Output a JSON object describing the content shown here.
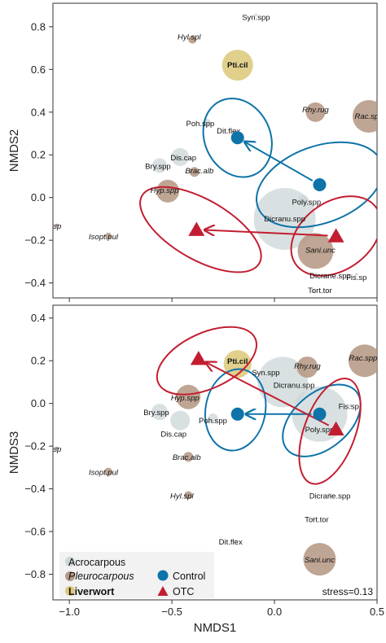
{
  "chart_data": [
    {
      "type": "scatter",
      "panel": "top",
      "xlabel": "",
      "ylabel": "NMDS2",
      "xlim": [
        -1.08,
        0.5
      ],
      "ylim": [
        -0.47,
        0.91
      ],
      "x_ticks": [
        -1.0,
        -0.5,
        0.0,
        0.5
      ],
      "x_tick_labels": [
        "",
        "",
        "",
        ""
      ],
      "y_ticks": [
        -0.4,
        -0.2,
        0.0,
        0.2,
        0.4,
        0.6,
        0.8
      ],
      "y_tick_labels": [
        "−0.4",
        "−0.2",
        "0.0",
        "0.2",
        "0.4",
        "0.6",
        "0.8"
      ],
      "species": [
        {
          "label": "Syn.spp",
          "x": -0.09,
          "y": 0.855,
          "group": "Acrocarpous",
          "size": 2
        },
        {
          "label": "Hyl.spl",
          "x": -0.4,
          "y": 0.74,
          "group": "Pleurocarpous",
          "size": 5
        },
        {
          "label": "Pti.cil",
          "x": -0.18,
          "y": 0.62,
          "group": "Liverwort",
          "size": 19
        },
        {
          "label": "Rhy.rug",
          "x": 0.2,
          "y": 0.4,
          "group": "Pleurocarpous",
          "size": 12
        },
        {
          "label": "Rac.spp",
          "x": 0.46,
          "y": 0.38,
          "group": "Pleurocarpous",
          "size": 20
        },
        {
          "label": "Poh.spp",
          "x": -0.33,
          "y": 0.35,
          "group": "Acrocarpous",
          "size": 5
        },
        {
          "label": "Dit.flex",
          "x": -0.2,
          "y": 0.3,
          "group": "Acrocarpous",
          "size": 3
        },
        {
          "label": "Dis.cap",
          "x": -0.46,
          "y": 0.19,
          "group": "Acrocarpous",
          "size": 11
        },
        {
          "label": "Bry.spp",
          "x": -0.56,
          "y": 0.15,
          "group": "Acrocarpous",
          "size": 9
        },
        {
          "label": "Brac.alb",
          "x": -0.39,
          "y": 0.12,
          "group": "Pleurocarpous",
          "size": 6
        },
        {
          "label": "Hyp.spp",
          "x": -0.52,
          "y": 0.03,
          "group": "Pleurocarpous",
          "size": 14
        },
        {
          "label": "Poly.spp",
          "x": 0.14,
          "y": -0.01,
          "group": "Acrocarpous",
          "size": 6
        },
        {
          "label": "Dicranu.spp",
          "x": 0.05,
          "y": -0.1,
          "group": "Acrocarpous",
          "size": 38
        },
        {
          "label": "Myu.sp",
          "x": -1.06,
          "y": -0.13,
          "group": "Pleurocarpous",
          "size": 2
        },
        {
          "label": "Isopt.pul",
          "x": -0.81,
          "y": -0.18,
          "group": "Pleurocarpous",
          "size": 4
        },
        {
          "label": "Sani.unc",
          "x": 0.2,
          "y": -0.25,
          "group": "Pleurocarpous",
          "size": 22
        },
        {
          "label": "Dicrane.spp",
          "x": 0.24,
          "y": -0.37,
          "group": "Acrocarpous",
          "size": 2
        },
        {
          "label": "Fis.sp",
          "x": 0.4,
          "y": -0.36,
          "group": "Acrocarpous",
          "size": 2
        },
        {
          "label": "Tort.tor",
          "x": 0.19,
          "y": -0.44,
          "group": "Acrocarpous",
          "size": 2
        }
      ],
      "centroids": [
        {
          "treatment": "Control",
          "start": [
            0.22,
            0.06
          ],
          "end": [
            -0.18,
            0.28
          ]
        },
        {
          "treatment": "OTC",
          "start": [
            0.3,
            -0.18
          ],
          "end": [
            -0.38,
            -0.15
          ]
        }
      ],
      "ellipses": [
        {
          "treatment": "Control",
          "cx": -0.18,
          "cy": 0.28,
          "rx": 0.16,
          "ry": 0.19,
          "angle": -25
        },
        {
          "treatment": "Control",
          "cx": 0.22,
          "cy": 0.06,
          "rx": 0.32,
          "ry": 0.18,
          "angle": -20
        },
        {
          "treatment": "OTC",
          "cx": -0.36,
          "cy": -0.15,
          "rx": 0.33,
          "ry": 0.14,
          "angle": 30
        },
        {
          "treatment": "OTC",
          "cx": 0.3,
          "cy": -0.18,
          "rx": 0.24,
          "ry": 0.16,
          "angle": -35
        }
      ]
    },
    {
      "type": "scatter",
      "panel": "bottom",
      "xlabel": "NMDS1",
      "ylabel": "NMDS3",
      "xlim": [
        -1.08,
        0.5
      ],
      "ylim": [
        -0.92,
        0.46
      ],
      "x_ticks": [
        -1.0,
        -0.5,
        0.0,
        0.5
      ],
      "x_tick_labels": [
        "−1.0",
        "−0.5",
        "0.0",
        "0.5"
      ],
      "y_ticks": [
        -0.8,
        -0.6,
        -0.4,
        -0.2,
        0.0,
        0.2,
        0.4
      ],
      "y_tick_labels": [
        "−0.8",
        "−0.6",
        "−0.4",
        "−0.2",
        "0.0",
        "0.2",
        "0.4"
      ],
      "stress_text": "stress=0.13",
      "species": [
        {
          "label": "Pti.cil",
          "x": -0.18,
          "y": 0.185,
          "group": "Liverwort",
          "size": 17
        },
        {
          "label": "Syn.spp",
          "x": -0.09,
          "y": 0.14,
          "group": "Acrocarpous",
          "size": 2
        },
        {
          "label": "Rhy.rug",
          "x": 0.16,
          "y": 0.17,
          "group": "Pleurocarpous",
          "size": 13
        },
        {
          "label": "Rac.spp",
          "x": 0.44,
          "y": 0.2,
          "group": "Pleurocarpous",
          "size": 20
        },
        {
          "label": "Dicranu.spp",
          "x": 0.04,
          "y": 0.1,
          "group": "Acrocarpous",
          "size": 31
        },
        {
          "label": "Hyp.spp",
          "x": -0.42,
          "y": 0.03,
          "group": "Pleurocarpous",
          "size": 15
        },
        {
          "label": "Fis.sp",
          "x": 0.37,
          "y": -0.01,
          "group": "Acrocarpous",
          "size": 2
        },
        {
          "label": "Bry.spp",
          "x": -0.56,
          "y": -0.04,
          "group": "Acrocarpous",
          "size": 10
        },
        {
          "label": "Poh.spp",
          "x": -0.3,
          "y": -0.07,
          "group": "Acrocarpous",
          "size": 6
        },
        {
          "label": "Dis.cap",
          "x": -0.46,
          "y": -0.08,
          "group": "Acrocarpous",
          "size": 12
        },
        {
          "label": "Poly.spp",
          "x": 0.22,
          "y": -0.05,
          "group": "Acrocarpous",
          "size": 34
        },
        {
          "label": "Myu.sp",
          "x": -1.06,
          "y": -0.21,
          "group": "Pleurocarpous",
          "size": 2
        },
        {
          "label": "Brac.alb",
          "x": -0.42,
          "y": -0.25,
          "group": "Pleurocarpous",
          "size": 6
        },
        {
          "label": "Isopt.pul",
          "x": -0.81,
          "y": -0.32,
          "group": "Pleurocarpous",
          "size": 5
        },
        {
          "label": "Hyl.spl",
          "x": -0.42,
          "y": -0.43,
          "group": "Pleurocarpous",
          "size": 5
        },
        {
          "label": "Dicrane.spp",
          "x": 0.27,
          "y": -0.43,
          "group": "Acrocarpous",
          "size": 3
        },
        {
          "label": "Tort.tor",
          "x": 0.19,
          "y": -0.54,
          "group": "Acrocarpous",
          "size": 2
        },
        {
          "label": "Dit.flex",
          "x": -0.19,
          "y": -0.645,
          "group": "Acrocarpous",
          "size": 2
        },
        {
          "label": "Sani.unc",
          "x": 0.22,
          "y": -0.73,
          "group": "Pleurocarpous",
          "size": 20
        }
      ],
      "centroids": [
        {
          "treatment": "Control",
          "start": [
            0.22,
            -0.05
          ],
          "end": [
            -0.18,
            -0.05
          ]
        },
        {
          "treatment": "OTC",
          "start": [
            0.3,
            -0.12
          ],
          "end": [
            -0.37,
            0.21
          ]
        }
      ],
      "ellipses": [
        {
          "treatment": "Control",
          "cx": -0.19,
          "cy": -0.03,
          "rx": 0.2,
          "ry": 0.14,
          "angle": -80
        },
        {
          "treatment": "Control",
          "cx": 0.23,
          "cy": -0.08,
          "rx": 0.22,
          "ry": 0.13,
          "angle": -40
        },
        {
          "treatment": "OTC",
          "cx": -0.33,
          "cy": 0.2,
          "rx": 0.26,
          "ry": 0.13,
          "angle": -25
        },
        {
          "treatment": "OTC",
          "cx": 0.27,
          "cy": -0.13,
          "rx": 0.27,
          "ry": 0.12,
          "angle": -70
        }
      ]
    }
  ],
  "legend": {
    "groups": [
      {
        "label": "Acrocarpous",
        "color": "#ccd5d7",
        "style": "normal"
      },
      {
        "label": "Pleurocarpous",
        "color": "#b69985",
        "style": "italic"
      },
      {
        "label": "Liverwort",
        "color": "#dcc97c",
        "style": "bold"
      }
    ],
    "treatments": [
      {
        "label": "Control",
        "color": "#0e73a8",
        "shape": "circle"
      },
      {
        "label": "OTC",
        "color": "#c21e31",
        "shape": "triangle"
      }
    ]
  },
  "colors": {
    "Acrocarpous": "#ccd5d7",
    "Pleurocarpous": "#b69985",
    "Liverwort": "#dcc97c",
    "Control": "#0e73a8",
    "OTC": "#c21e31"
  }
}
